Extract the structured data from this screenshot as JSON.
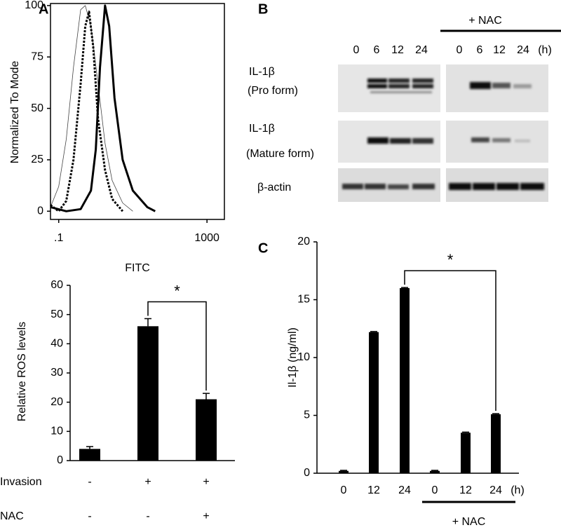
{
  "chart_data": [
    {
      "type": "line",
      "panel": "A",
      "xlabel": "FITC",
      "ylabel": "Normalized To Mode",
      "xscale": "log",
      "xlim": [
        0.06,
        2950
      ],
      "ylim": [
        -4,
        101
      ],
      "xticks": [
        {
          "value": 0.1,
          "label": ".1"
        },
        1000
      ],
      "yticks": [
        0,
        25,
        50,
        75,
        100
      ],
      "series": [
        {
          "color": "#444444",
          "style": "thin",
          "x": [
            0.06,
            0.1,
            0.16,
            0.25,
            0.39,
            0.52,
            0.74,
            1.15,
            1.78,
            2.76,
            5.3,
            10
          ],
          "values": [
            2,
            12,
            35,
            70,
            98,
            100,
            90,
            62,
            33,
            15,
            4,
            0
          ]
        },
        {
          "color": "#000000",
          "style": "dotted",
          "x": [
            0.06,
            0.1,
            0.16,
            0.25,
            0.39,
            0.52,
            0.66,
            0.85,
            1.15,
            1.78,
            2.76,
            5.3
          ],
          "values": [
            3,
            0,
            5,
            25,
            62,
            90,
            97,
            80,
            45,
            20,
            6,
            0
          ]
        },
        {
          "color": "#000000",
          "style": "thick",
          "x": [
            0.06,
            0.16,
            0.39,
            0.74,
            1.0,
            1.3,
            1.78,
            2.3,
            3.2,
            5.3,
            10,
            24.5,
            40
          ],
          "values": [
            2,
            0,
            1,
            10,
            30,
            70,
            100,
            90,
            55,
            25,
            10,
            2,
            0
          ]
        }
      ]
    },
    {
      "type": "bar",
      "ylabel": "Relative ROS levels",
      "color": "#000000",
      "values": [
        4,
        46,
        21
      ],
      "errors": [
        0.8,
        2.6,
        2
      ],
      "ylim": [
        0,
        60
      ],
      "yticks": [
        0,
        10,
        20,
        30,
        40,
        50,
        60
      ],
      "conditions": [
        {
          "name": "Invasion",
          "marks": [
            "-",
            "+",
            "+"
          ]
        },
        {
          "name": "NAC",
          "marks": [
            "-",
            "-",
            "+"
          ]
        }
      ],
      "significance": {
        "label": "*",
        "between": [
          1,
          2
        ]
      }
    },
    {
      "type": "bar",
      "panel": "C",
      "ylabel": "Il-1β (ng/ml)",
      "color": "#000000",
      "categories": [
        "0",
        "12",
        "24",
        "0",
        "12",
        "24"
      ],
      "unit": "(h)",
      "values": [
        0.2,
        12.2,
        16.0,
        0.2,
        3.5,
        5.1
      ],
      "errors": [
        0.05,
        0.05,
        0.05,
        0.05,
        0.05,
        0.05
      ],
      "ylim": [
        0,
        20
      ],
      "yticks": [
        0,
        5,
        10,
        15,
        20
      ],
      "group": {
        "label": "+ NAC",
        "between": [
          3,
          5
        ]
      },
      "significance": {
        "label": "*",
        "between": [
          2,
          5
        ]
      }
    }
  ],
  "blot": {
    "panel": "B",
    "treatment": "+ NAC",
    "lanes": [
      "0",
      "6",
      "12",
      "24",
      "0",
      "6",
      "12",
      "24"
    ],
    "unit": "(h)",
    "rows": [
      {
        "name": "IL-1β",
        "form": "(Pro form)"
      },
      {
        "name": "IL-1β",
        "form": "(Mature form)"
      },
      {
        "name": "β-actin"
      }
    ]
  }
}
